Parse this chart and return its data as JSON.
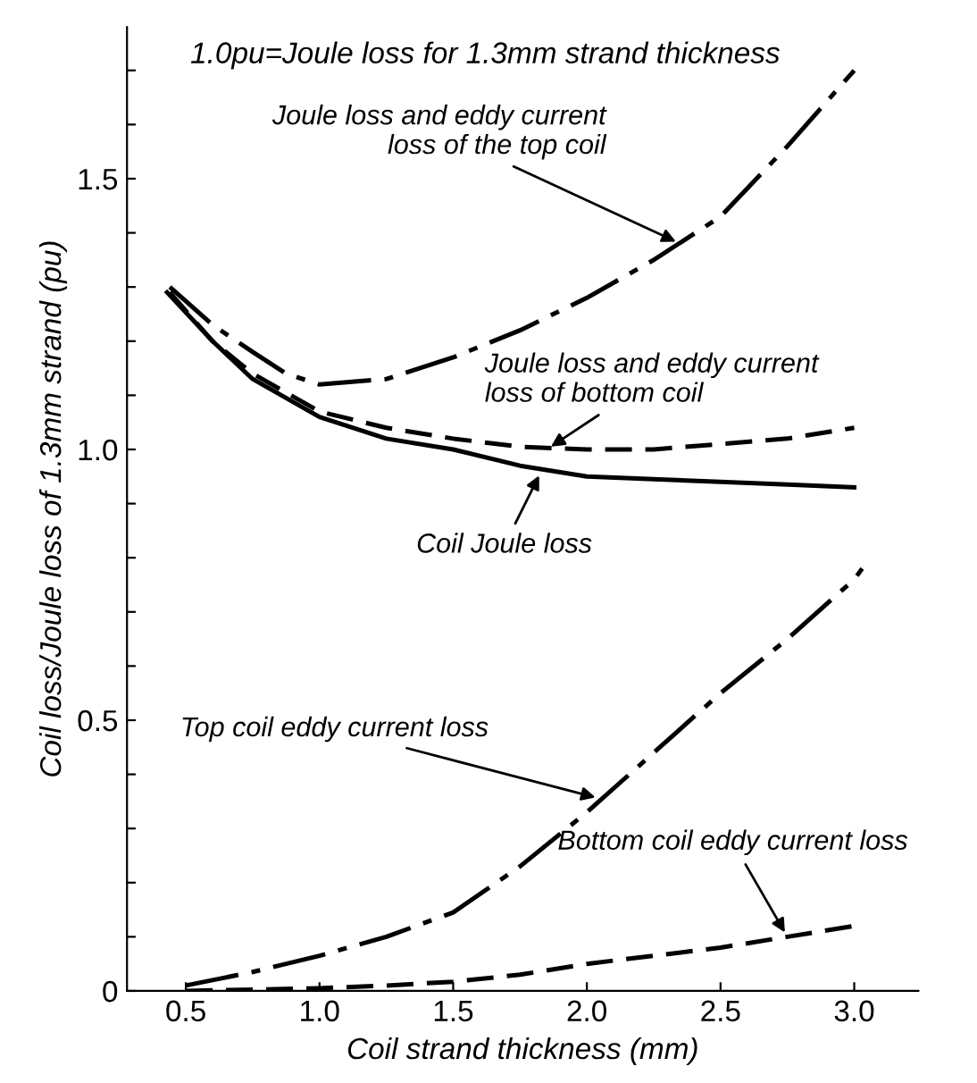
{
  "chart_data": {
    "type": "line",
    "xlabel": "Coil strand thickness (mm)",
    "ylabel": "Coil loss/Joule loss of 1.3mm strand (pu)",
    "xlim": [
      0.28,
      3.24
    ],
    "xticks": [
      0.5,
      {
        "value": 1.0,
        "label": "1.0"
      },
      1.5,
      {
        "value": 2.0,
        "label": "2.0"
      },
      2.5,
      {
        "value": 3.0,
        "label": "3.0"
      }
    ],
    "ylim": [
      0,
      1.78
    ],
    "yticks": [
      0,
      {
        "value": 0.1,
        "label": null
      },
      {
        "value": 0.2,
        "label": null
      },
      {
        "value": 0.3,
        "label": null
      },
      {
        "value": 0.4,
        "label": null
      },
      0.5,
      {
        "value": 0.6,
        "label": null
      },
      {
        "value": 0.7,
        "label": null
      },
      {
        "value": 0.8,
        "label": null
      },
      {
        "value": 0.9,
        "label": null
      },
      {
        "value": 1.0,
        "label": "1.0"
      },
      {
        "value": 1.1,
        "label": null
      },
      {
        "value": 1.2,
        "label": null
      },
      {
        "value": 1.3,
        "label": null
      },
      {
        "value": 1.4,
        "label": null
      },
      1.5,
      {
        "value": 1.6,
        "label": null
      },
      {
        "value": 1.7,
        "label": null
      }
    ],
    "grid": false,
    "legend": false,
    "series": [
      {
        "color": "#000000",
        "line_style": "dashdot",
        "x": [
          0.44,
          0.6,
          0.75,
          0.875,
          1.0,
          1.25,
          1.5,
          1.75,
          2.0,
          2.25,
          2.5,
          2.75,
          3.0
        ],
        "values": [
          1.3,
          1.23,
          1.18,
          1.14,
          1.12,
          1.13,
          1.17,
          1.22,
          1.28,
          1.35,
          1.43,
          1.56,
          1.7
        ]
      },
      {
        "color": "#000000",
        "line_style": "dashed",
        "x": [
          0.44,
          0.6,
          0.75,
          1.0,
          1.25,
          1.5,
          1.75,
          2.0,
          2.25,
          2.5,
          2.75,
          3.0
        ],
        "values": [
          1.29,
          1.2,
          1.14,
          1.07,
          1.04,
          1.02,
          1.005,
          1.0,
          1.0,
          1.01,
          1.02,
          1.04
        ]
      },
      {
        "color": "#000000",
        "line_style": "solid",
        "x": [
          0.43,
          0.6,
          0.75,
          1.0,
          1.25,
          1.5,
          1.75,
          2.0,
          2.25,
          2.5,
          2.75,
          3.0
        ],
        "values": [
          1.29,
          1.2,
          1.13,
          1.06,
          1.02,
          1.0,
          0.97,
          0.95,
          0.945,
          0.94,
          0.935,
          0.93
        ]
      },
      {
        "color": "#000000",
        "line_style": "dashdot",
        "x": [
          0.5,
          0.75,
          1.0,
          1.25,
          1.5,
          1.75,
          2.0,
          2.25,
          2.5,
          2.75,
          3.0,
          3.03
        ],
        "values": [
          0.01,
          0.035,
          0.065,
          0.1,
          0.145,
          0.23,
          0.33,
          0.44,
          0.55,
          0.65,
          0.76,
          0.78
        ]
      },
      {
        "color": "#000000",
        "line_style": "dashed",
        "x": [
          0.5,
          1.0,
          1.25,
          1.5,
          1.75,
          2.0,
          2.25,
          2.5,
          2.75,
          3.0
        ],
        "values": [
          0.0,
          0.005,
          0.01,
          0.017,
          0.03,
          0.05,
          0.065,
          0.08,
          0.1,
          0.12
        ]
      }
    ],
    "annotations": [
      "1.0pu=Joule loss for 1.3mm strand thickness",
      {
        "text": "Joule loss and eddy current\nloss of the top coil",
        "x": 2.35,
        "y": 1.38
      },
      {
        "text": "Joule loss and eddy current\nloss of bottom coil",
        "x": 1.85,
        "y": 1.0
      },
      {
        "text": "Coil Joule loss",
        "x": 1.83,
        "y": 0.96
      },
      {
        "text": "Top coil eddy current loss",
        "x": 2.05,
        "y": 0.355
      },
      {
        "text": "Bottom coil eddy current loss",
        "x": 2.75,
        "y": 0.1
      }
    ]
  }
}
